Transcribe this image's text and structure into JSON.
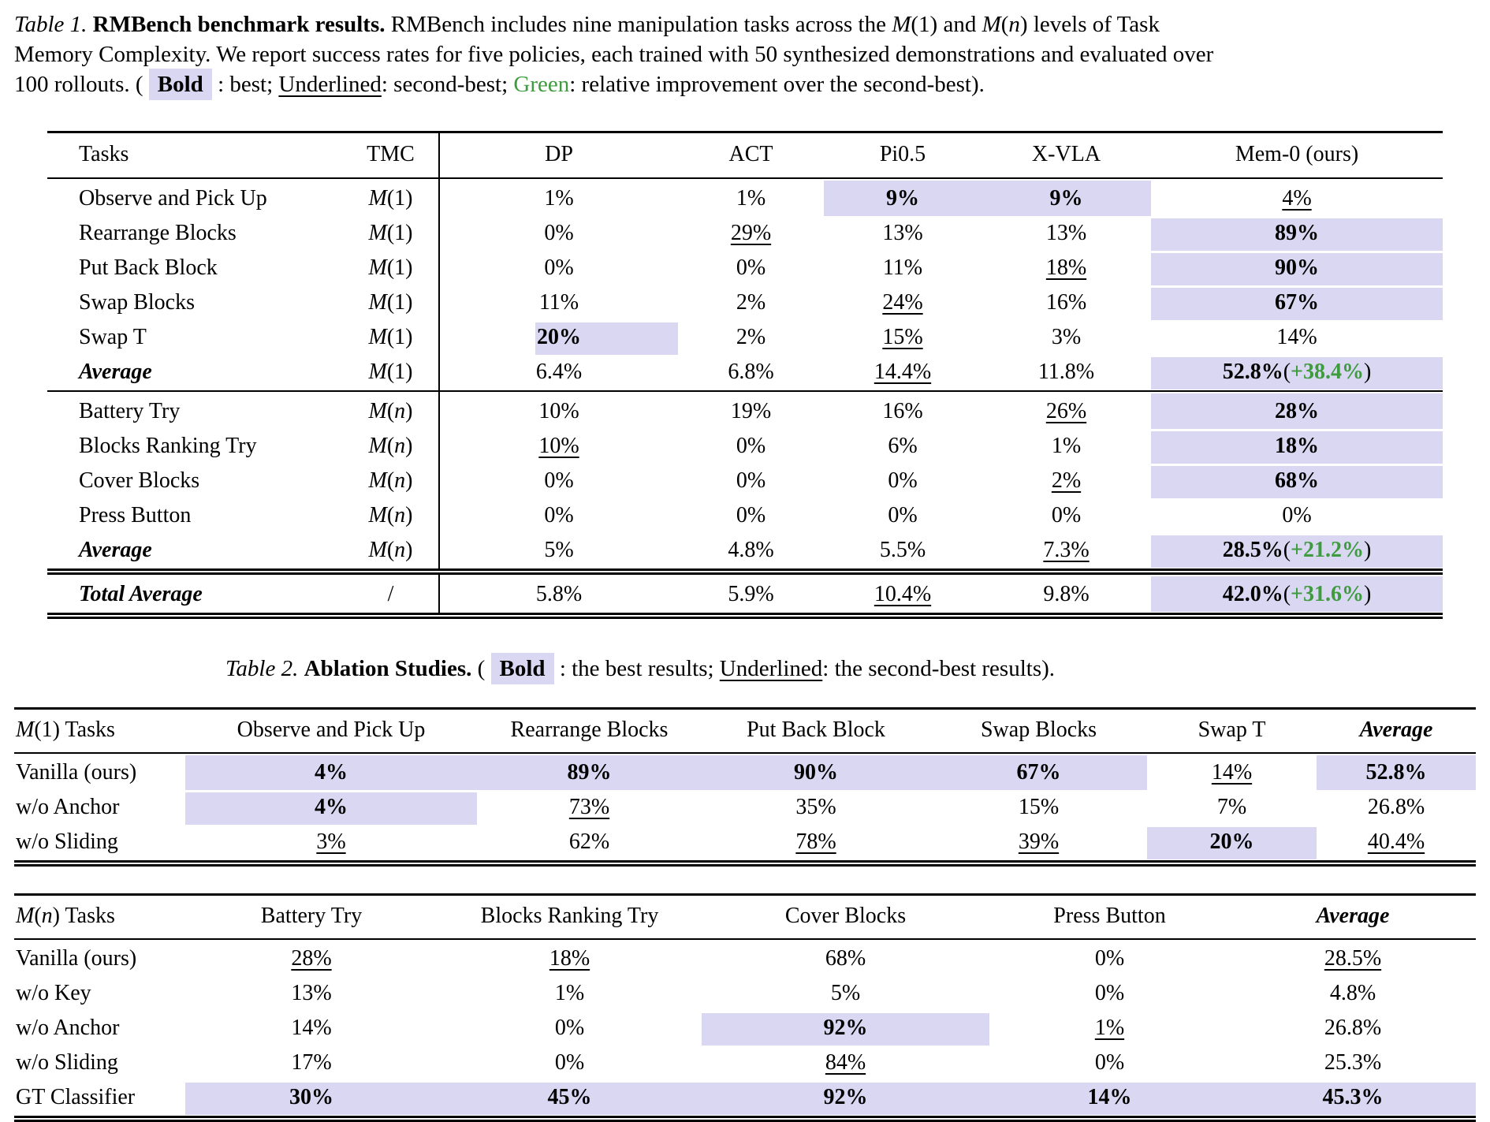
{
  "colors": {
    "highlight": "#dad7f3",
    "green": "#3e9c3e"
  },
  "table1": {
    "caption_segments": [
      {
        "t": "Table 1. ",
        "s": "i"
      },
      {
        "t": "RMBench benchmark results. ",
        "s": "b"
      },
      {
        "t": "RMBench includes nine manipulation tasks across the ",
        "s": ""
      },
      {
        "t": "M",
        "s": "m"
      },
      {
        "t": "(1)",
        "s": ""
      },
      {
        "t": " and ",
        "s": ""
      },
      {
        "t": "M",
        "s": "m"
      },
      {
        "t": "(",
        "s": ""
      },
      {
        "t": "n",
        "s": "m"
      },
      {
        "t": ")",
        "s": ""
      },
      {
        "t": " levels of Task Memory Complexity. We report success rates for five policies, each trained with 50 synthesized demonstrations and evaluated over 100 rollouts. ( ",
        "s": ""
      },
      {
        "t": "Bold",
        "s": "bh"
      },
      {
        "t": " : best; ",
        "s": ""
      },
      {
        "t": "Underlined",
        "s": "u"
      },
      {
        "t": ": second-best; ",
        "s": ""
      },
      {
        "t": "Green",
        "s": "g"
      },
      {
        "t": ": relative improvement over the second-best).",
        "s": ""
      }
    ],
    "headers": [
      "Tasks",
      "TMC",
      "DP",
      "ACT",
      "Pi0.5",
      "X-VLA",
      "Mem-0 (ours)"
    ],
    "sections": [
      {
        "rows": [
          {
            "task": "Observe and Pick Up",
            "tmc": "M(1)",
            "cells": [
              {
                "v": "1%"
              },
              {
                "v": "1%"
              },
              {
                "v": "9%",
                "s": "bh"
              },
              {
                "v": "9%",
                "s": "bh"
              },
              {
                "v": "4%",
                "s": "u"
              }
            ]
          },
          {
            "task": "Rearrange Blocks",
            "tmc": "M(1)",
            "cells": [
              {
                "v": "0%"
              },
              {
                "v": "29%",
                "s": "u"
              },
              {
                "v": "13%"
              },
              {
                "v": "13%"
              },
              {
                "v": "89%",
                "s": "bh"
              }
            ]
          },
          {
            "task": "Put Back Block",
            "tmc": "M(1)",
            "cells": [
              {
                "v": "0%"
              },
              {
                "v": "0%"
              },
              {
                "v": "11%"
              },
              {
                "v": "18%",
                "s": "u"
              },
              {
                "v": "90%",
                "s": "bh"
              }
            ]
          },
          {
            "task": "Swap Blocks",
            "tmc": "M(1)",
            "cells": [
              {
                "v": "11%"
              },
              {
                "v": "2%"
              },
              {
                "v": "24%",
                "s": "u"
              },
              {
                "v": "16%"
              },
              {
                "v": "67%",
                "s": "bh"
              }
            ]
          },
          {
            "task": "Swap T",
            "tmc": "M(1)",
            "cells": [
              {
                "v": "20%",
                "s": "bp"
              },
              {
                "v": "2%"
              },
              {
                "v": "15%",
                "s": "u"
              },
              {
                "v": "3%"
              },
              {
                "v": "14%"
              }
            ]
          },
          {
            "task": "Average",
            "ls": "bi",
            "tmc": "M(1)",
            "cells": [
              {
                "v": "6.4%"
              },
              {
                "v": "6.8%"
              },
              {
                "v": "14.4%",
                "s": "u"
              },
              {
                "v": "11.8%"
              },
              {
                "v": "52.8%",
                "s": "bh",
                "g": "+38.4%"
              }
            ]
          }
        ]
      },
      {
        "rows": [
          {
            "task": "Battery Try",
            "tmc": "M(n)",
            "cells": [
              {
                "v": "10%"
              },
              {
                "v": "19%"
              },
              {
                "v": "16%"
              },
              {
                "v": "26%",
                "s": "u"
              },
              {
                "v": "28%",
                "s": "bh"
              }
            ]
          },
          {
            "task": "Blocks Ranking Try",
            "tmc": "M(n)",
            "cells": [
              {
                "v": "10%",
                "s": "u"
              },
              {
                "v": "0%"
              },
              {
                "v": "6%"
              },
              {
                "v": "1%"
              },
              {
                "v": "18%",
                "s": "bh"
              }
            ]
          },
          {
            "task": "Cover Blocks",
            "tmc": "M(n)",
            "cells": [
              {
                "v": "0%"
              },
              {
                "v": "0%"
              },
              {
                "v": "0%"
              },
              {
                "v": "2%",
                "s": "u"
              },
              {
                "v": "68%",
                "s": "bh"
              }
            ]
          },
          {
            "task": "Press Button",
            "tmc": "M(n)",
            "cells": [
              {
                "v": "0%"
              },
              {
                "v": "0%"
              },
              {
                "v": "0%"
              },
              {
                "v": "0%"
              },
              {
                "v": "0%"
              }
            ]
          },
          {
            "task": "Average",
            "ls": "bi",
            "tmc": "M(n)",
            "cells": [
              {
                "v": "5%"
              },
              {
                "v": "4.8%"
              },
              {
                "v": "5.5%"
              },
              {
                "v": "7.3%",
                "s": "u"
              },
              {
                "v": "28.5%",
                "s": "bh",
                "g": "+21.2%"
              }
            ]
          }
        ]
      },
      {
        "rows": [
          {
            "task": "Total Average",
            "ls": "bi",
            "tmc": "/",
            "cells": [
              {
                "v": "5.8%"
              },
              {
                "v": "5.9%"
              },
              {
                "v": "10.4%",
                "s": "u"
              },
              {
                "v": "9.8%"
              },
              {
                "v": "42.0%",
                "s": "bh",
                "g": "+31.6%"
              }
            ]
          }
        ]
      }
    ]
  },
  "table2": {
    "caption_segments": [
      {
        "t": "Table 2. ",
        "s": "i"
      },
      {
        "t": "Ablation Studies. ",
        "s": "b"
      },
      {
        "t": "( ",
        "s": ""
      },
      {
        "t": "Bold",
        "s": "bh"
      },
      {
        "t": " : the best results; ",
        "s": ""
      },
      {
        "t": "Underlined",
        "s": "u"
      },
      {
        "t": ": the second-best results).",
        "s": ""
      }
    ],
    "m1": {
      "headers": [
        {
          "t": "M(1) Tasks"
        },
        {
          "t": "Observe and Pick Up"
        },
        {
          "t": "Rearrange Blocks"
        },
        {
          "t": "Put Back Block"
        },
        {
          "t": "Swap Blocks"
        },
        {
          "t": "Swap T"
        },
        {
          "t": "Average",
          "s": "bi"
        }
      ],
      "rows": [
        {
          "label": "Vanilla (ours)",
          "cells": [
            {
              "v": "4%",
              "s": "bh"
            },
            {
              "v": "89%",
              "s": "bh"
            },
            {
              "v": "90%",
              "s": "bh"
            },
            {
              "v": "67%",
              "s": "bh"
            },
            {
              "v": "14%",
              "s": "u"
            },
            {
              "v": "52.8%",
              "s": "bh"
            }
          ]
        },
        {
          "label": "w/o Anchor",
          "cells": [
            {
              "v": "4%",
              "s": "bh"
            },
            {
              "v": "73%",
              "s": "u"
            },
            {
              "v": "35%"
            },
            {
              "v": "15%"
            },
            {
              "v": "7%"
            },
            {
              "v": "26.8%"
            }
          ]
        },
        {
          "label": "w/o Sliding",
          "cells": [
            {
              "v": "3%",
              "s": "u"
            },
            {
              "v": "62%"
            },
            {
              "v": "78%",
              "s": "u"
            },
            {
              "v": "39%",
              "s": "u"
            },
            {
              "v": "20%",
              "s": "bh"
            },
            {
              "v": "40.4%",
              "s": "u"
            }
          ]
        }
      ]
    },
    "mn": {
      "headers": [
        {
          "t": "M(n) Tasks"
        },
        {
          "t": "Battery Try"
        },
        {
          "t": "Blocks Ranking Try"
        },
        {
          "t": "Cover Blocks"
        },
        {
          "t": "Press Button"
        },
        {
          "t": "Average",
          "s": "bi"
        }
      ],
      "rows": [
        {
          "label": "Vanilla (ours)",
          "cells": [
            {
              "v": "28%",
              "s": "u"
            },
            {
              "v": "18%",
              "s": "u"
            },
            {
              "v": "68%"
            },
            {
              "v": "0%"
            },
            {
              "v": "28.5%",
              "s": "u"
            }
          ]
        },
        {
          "label": "w/o Key",
          "cells": [
            {
              "v": "13%"
            },
            {
              "v": "1%"
            },
            {
              "v": "5%"
            },
            {
              "v": "0%"
            },
            {
              "v": "4.8%"
            }
          ]
        },
        {
          "label": "w/o Anchor",
          "cells": [
            {
              "v": "14%"
            },
            {
              "v": "0%"
            },
            {
              "v": "92%",
              "s": "bh"
            },
            {
              "v": "1%",
              "s": "u"
            },
            {
              "v": "26.8%"
            }
          ]
        },
        {
          "label": "w/o Sliding",
          "cells": [
            {
              "v": "17%"
            },
            {
              "v": "0%"
            },
            {
              "v": "84%",
              "s": "u"
            },
            {
              "v": "0%"
            },
            {
              "v": "25.3%"
            }
          ]
        },
        {
          "label": "GT Classifier",
          "cells": [
            {
              "v": "30%",
              "s": "bh"
            },
            {
              "v": "45%",
              "s": "bh"
            },
            {
              "v": "92%",
              "s": "bh"
            },
            {
              "v": "14%",
              "s": "bh"
            },
            {
              "v": "45.3%",
              "s": "bh"
            }
          ]
        }
      ]
    }
  }
}
